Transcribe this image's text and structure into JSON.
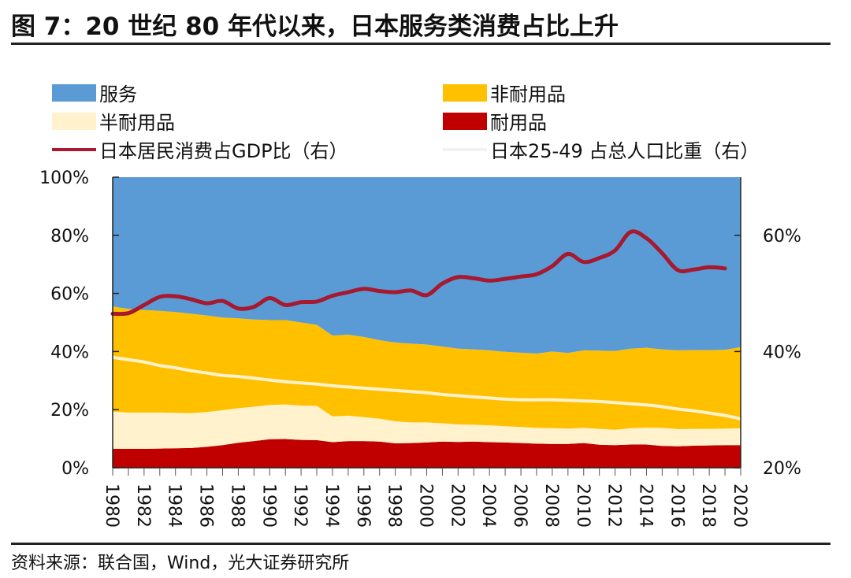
{
  "header": {
    "title": "图 7：20 世纪 80 年代以来，日本服务类消费占比上升",
    "source": "资料来源：联合国，Wind，光大证券研究所"
  },
  "chart_data": {
    "type": "area",
    "title": "图 7：20 世纪 80 年代以来，日本服务类消费占比上升",
    "xlabel": "",
    "ylabel": "",
    "x": [
      1980,
      1981,
      1982,
      1983,
      1984,
      1985,
      1986,
      1987,
      1988,
      1989,
      1990,
      1991,
      1992,
      1993,
      1994,
      1995,
      1996,
      1997,
      1998,
      1999,
      2000,
      2001,
      2002,
      2003,
      2004,
      2005,
      2006,
      2007,
      2008,
      2009,
      2010,
      2011,
      2012,
      2013,
      2014,
      2015,
      2016,
      2017,
      2018,
      2019,
      2020
    ],
    "x_ticks": [
      "1980",
      "1982",
      "1984",
      "1986",
      "1988",
      "1990",
      "1992",
      "1994",
      "1996",
      "1998",
      "2000",
      "2002",
      "2004",
      "2006",
      "2008",
      "2010",
      "2012",
      "2014",
      "2016",
      "2018",
      "2020"
    ],
    "y_left": {
      "ticks": [
        "0%",
        "20%",
        "40%",
        "60%",
        "80%",
        "100%"
      ],
      "range": [
        0,
        100
      ]
    },
    "y_right": {
      "ticks": [
        "20%",
        "40%",
        "60%"
      ],
      "range": [
        20,
        70
      ]
    },
    "grid": false,
    "legend_position": "top",
    "stacked": true,
    "series": [
      {
        "name": "耐用品",
        "axis": "left",
        "kind": "area",
        "color": "#C00000",
        "values": [
          6.5,
          6.5,
          6.5,
          6.6,
          6.7,
          6.8,
          7.2,
          7.8,
          8.6,
          9.2,
          9.8,
          9.9,
          9.6,
          9.5,
          8.8,
          9.2,
          9.2,
          9.0,
          8.4,
          8.5,
          8.7,
          9.0,
          8.9,
          9.0,
          8.8,
          8.7,
          8.5,
          8.3,
          8.2,
          8.2,
          8.5,
          7.9,
          7.8,
          8.0,
          8.0,
          7.5,
          7.4,
          7.6,
          7.7,
          7.8,
          7.8
        ]
      },
      {
        "name": "半耐用品",
        "axis": "left",
        "kind": "area",
        "color": "#FFF2CC",
        "values": [
          12.8,
          12.5,
          12.5,
          12.4,
          12.2,
          12.0,
          12.0,
          12.0,
          11.9,
          11.8,
          11.8,
          11.9,
          11.8,
          11.8,
          8.9,
          8.7,
          8.2,
          7.9,
          7.6,
          7.1,
          6.9,
          6.3,
          6.0,
          5.8,
          5.8,
          5.6,
          5.5,
          5.4,
          5.4,
          5.3,
          5.2,
          5.5,
          5.3,
          5.6,
          5.8,
          6.2,
          5.9,
          5.8,
          5.7,
          5.7,
          5.8
        ]
      },
      {
        "name": "非耐用品",
        "axis": "left",
        "kind": "area",
        "color": "#FFC000",
        "values": [
          36.2,
          35.7,
          35.3,
          35.0,
          34.7,
          34.2,
          33.2,
          31.9,
          30.9,
          30.0,
          29.2,
          29.0,
          28.6,
          27.9,
          27.8,
          27.9,
          27.6,
          27.0,
          27.1,
          27.1,
          26.8,
          26.4,
          26.1,
          25.9,
          25.8,
          25.6,
          25.6,
          25.6,
          26.4,
          26.0,
          26.7,
          26.9,
          27.1,
          27.4,
          27.5,
          27.0,
          27.1,
          27.1,
          27.1,
          27.1,
          27.9
        ]
      },
      {
        "name": "服务",
        "axis": "left",
        "kind": "area",
        "color": "#5B9BD5",
        "values": [
          44.5,
          45.3,
          45.7,
          46.0,
          46.4,
          47.0,
          47.6,
          48.3,
          48.6,
          49.0,
          49.2,
          49.2,
          50.0,
          50.8,
          54.5,
          54.2,
          55.0,
          56.1,
          56.9,
          57.3,
          57.6,
          58.3,
          59.0,
          59.3,
          59.6,
          60.1,
          60.4,
          60.7,
          60.0,
          60.5,
          59.6,
          59.7,
          59.8,
          59.0,
          58.7,
          59.3,
          59.6,
          59.5,
          59.5,
          59.4,
          58.5
        ]
      },
      {
        "name": "日本居民消费占GDP比（右）",
        "axis": "right",
        "kind": "line",
        "color": "#A6192E",
        "values": [
          46.5,
          46.6,
          48.0,
          49.4,
          49.5,
          49.0,
          48.3,
          48.7,
          47.4,
          47.7,
          49.2,
          48.0,
          48.5,
          48.6,
          49.6,
          50.2,
          50.8,
          50.4,
          50.2,
          50.5,
          49.7,
          51.7,
          52.8,
          52.6,
          52.2,
          52.5,
          52.9,
          53.3,
          54.7,
          56.8,
          55.4,
          56.1,
          57.4,
          60.6,
          59.5,
          56.9,
          54.0,
          54.1,
          54.5,
          54.3,
          null
        ]
      },
      {
        "name": "日本25-49 占总人口比重（右）",
        "axis": "right",
        "kind": "line",
        "color": "#FFF2CC",
        "values": [
          39.0,
          38.6,
          38.2,
          37.6,
          37.2,
          36.7,
          36.3,
          35.9,
          35.7,
          35.4,
          35.1,
          34.8,
          34.6,
          34.4,
          34.1,
          33.9,
          33.7,
          33.5,
          33.3,
          33.1,
          32.9,
          32.6,
          32.4,
          32.2,
          32.0,
          31.8,
          31.7,
          31.7,
          31.7,
          31.6,
          31.5,
          31.4,
          31.2,
          31.0,
          30.8,
          30.5,
          30.1,
          29.8,
          29.4,
          29.0,
          28.4
        ]
      }
    ]
  }
}
